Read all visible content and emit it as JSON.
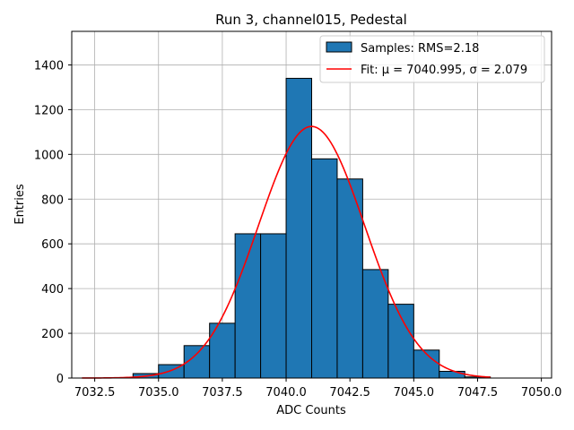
{
  "chart_data": {
    "type": "bar",
    "title": "Run 3, channel015, Pedestal",
    "xlabel": "ADC Counts",
    "ylabel": "Entries",
    "xlim": [
      7031.6,
      7050.4
    ],
    "ylim": [
      0,
      1550
    ],
    "xticks": [
      7032.5,
      7035.0,
      7037.5,
      7040.0,
      7042.5,
      7045.0,
      7047.5,
      7050.0
    ],
    "xtick_labels": [
      "7032.5",
      "7035.0",
      "7037.5",
      "7040.0",
      "7042.5",
      "7045.0",
      "7047.5",
      "7050.0"
    ],
    "yticks": [
      0,
      200,
      400,
      600,
      800,
      1000,
      1200,
      1400
    ],
    "ytick_labels": [
      "0",
      "200",
      "400",
      "600",
      "800",
      "1000",
      "1200",
      "1400"
    ],
    "grid": true,
    "legend_position": "top-right",
    "histogram": {
      "name": "Samples: RMS=2.18",
      "color": "#1f77b4",
      "edge_color": "#000000",
      "bins": [
        {
          "x0": 7034,
          "x1": 7035,
          "value": 20
        },
        {
          "x0": 7035,
          "x1": 7036,
          "value": 60
        },
        {
          "x0": 7036,
          "x1": 7037,
          "value": 145
        },
        {
          "x0": 7037,
          "x1": 7038,
          "value": 245
        },
        {
          "x0": 7038,
          "x1": 7039,
          "value": 645
        },
        {
          "x0": 7039,
          "x1": 7040,
          "value": 645
        },
        {
          "x0": 7040,
          "x1": 7041,
          "value": 1340
        },
        {
          "x0": 7041,
          "x1": 7042,
          "value": 980
        },
        {
          "x0": 7042,
          "x1": 7043,
          "value": 890
        },
        {
          "x0": 7043,
          "x1": 7044,
          "value": 485
        },
        {
          "x0": 7044,
          "x1": 7045,
          "value": 330
        },
        {
          "x0": 7045,
          "x1": 7046,
          "value": 125
        },
        {
          "x0": 7046,
          "x1": 7047,
          "value": 30
        },
        {
          "x0": 7047,
          "x1": 7048,
          "value": 5
        }
      ]
    },
    "fit": {
      "name": "Fit: μ = 7040.995, σ = 2.079",
      "color": "#ff0000",
      "mu": 7040.995,
      "sigma": 2.079,
      "amplitude": 1125,
      "x_range": [
        7032.0,
        7048.0
      ]
    }
  }
}
